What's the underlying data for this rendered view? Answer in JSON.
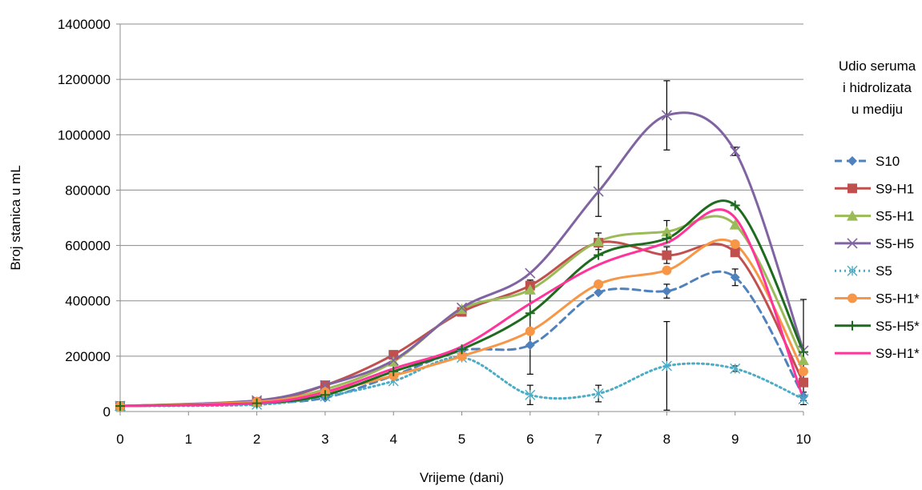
{
  "chart_data": {
    "type": "line",
    "title": "",
    "xlabel": "Vrijeme (dani)",
    "ylabel": "Broj stanica u mL",
    "xlim": [
      0,
      10
    ],
    "ylim": [
      0,
      1400000
    ],
    "x_ticks": [
      0,
      1,
      2,
      3,
      4,
      5,
      6,
      7,
      8,
      9,
      10
    ],
    "y_ticks": [
      0,
      200000,
      400000,
      600000,
      800000,
      1000000,
      1200000,
      1400000
    ],
    "grid": "horizontal",
    "legend_title": "Udio seruma i hidrolizata u mediju",
    "legend_position": "right",
    "series": [
      {
        "name": "S10",
        "color": "#4F81BD",
        "marker": "diamond",
        "dash": "dashed",
        "x": [
          0,
          2,
          3,
          4,
          5,
          6,
          7,
          8,
          9,
          10
        ],
        "y": [
          20000,
          30000,
          50000,
          130000,
          220000,
          240000,
          430000,
          435000,
          485000,
          55000
        ],
        "err": [
          0,
          0,
          0,
          0,
          0,
          0,
          0,
          25000,
          30000,
          15000
        ]
      },
      {
        "name": "S9-H1",
        "color": "#C0504D",
        "marker": "square",
        "dash": "solid",
        "x": [
          0,
          2,
          3,
          4,
          5,
          6,
          7,
          8,
          9,
          10
        ],
        "y": [
          20000,
          35000,
          95000,
          205000,
          360000,
          455000,
          610000,
          565000,
          575000,
          105000
        ],
        "err": [
          0,
          0,
          0,
          0,
          0,
          20000,
          0,
          30000,
          0,
          0
        ]
      },
      {
        "name": "S5-H1",
        "color": "#9BBB59",
        "marker": "triangle",
        "dash": "solid",
        "x": [
          0,
          2,
          3,
          4,
          5,
          6,
          7,
          8,
          9,
          10
        ],
        "y": [
          20000,
          35000,
          80000,
          180000,
          370000,
          440000,
          615000,
          650000,
          675000,
          185000
        ],
        "err": [
          0,
          0,
          0,
          0,
          0,
          0,
          30000,
          40000,
          0,
          0
        ]
      },
      {
        "name": "S5-H5",
        "color": "#8064A2",
        "marker": "x",
        "dash": "solid",
        "x": [
          0,
          2,
          3,
          4,
          5,
          6,
          7,
          8,
          9,
          10
        ],
        "y": [
          20000,
          40000,
          95000,
          185000,
          375000,
          500000,
          795000,
          1070000,
          940000,
          220000
        ],
        "err": [
          0,
          0,
          0,
          0,
          0,
          0,
          90000,
          125000,
          15000,
          0
        ]
      },
      {
        "name": "S5",
        "color": "#4BACC6",
        "marker": "asterisk",
        "dash": "dotted",
        "x": [
          0,
          2,
          3,
          4,
          5,
          6,
          7,
          8,
          9,
          10
        ],
        "y": [
          20000,
          25000,
          55000,
          110000,
          195000,
          60000,
          65000,
          165000,
          155000,
          45000
        ],
        "err": [
          0,
          0,
          0,
          0,
          0,
          35000,
          30000,
          160000,
          10000,
          0
        ]
      },
      {
        "name": "S5-H1*",
        "color": "#F79646",
        "marker": "circle",
        "dash": "solid",
        "x": [
          0,
          2,
          3,
          4,
          5,
          6,
          7,
          8,
          9,
          10
        ],
        "y": [
          20000,
          35000,
          70000,
          130000,
          200000,
          290000,
          460000,
          510000,
          605000,
          145000
        ],
        "err": [
          0,
          0,
          0,
          0,
          0,
          155000,
          0,
          0,
          0,
          0
        ]
      },
      {
        "name": "S5-H5*",
        "color": "#1E6A1E",
        "marker": "plus",
        "dash": "solid",
        "x": [
          0,
          2,
          3,
          4,
          5,
          6,
          7,
          8,
          9,
          10
        ],
        "y": [
          20000,
          30000,
          60000,
          145000,
          225000,
          355000,
          565000,
          625000,
          745000,
          215000
        ],
        "err": [
          0,
          0,
          0,
          0,
          0,
          0,
          0,
          0,
          0,
          190000
        ]
      },
      {
        "name": "S9-H1*",
        "color": "#FF3399",
        "marker": "none",
        "dash": "solid",
        "x": [
          0,
          2,
          3,
          4,
          5,
          6,
          7,
          8,
          9,
          10
        ],
        "y": [
          20000,
          30000,
          70000,
          155000,
          235000,
          390000,
          530000,
          610000,
          700000,
          45000
        ],
        "err": [
          0,
          0,
          0,
          0,
          0,
          0,
          0,
          0,
          0,
          0
        ]
      }
    ]
  }
}
